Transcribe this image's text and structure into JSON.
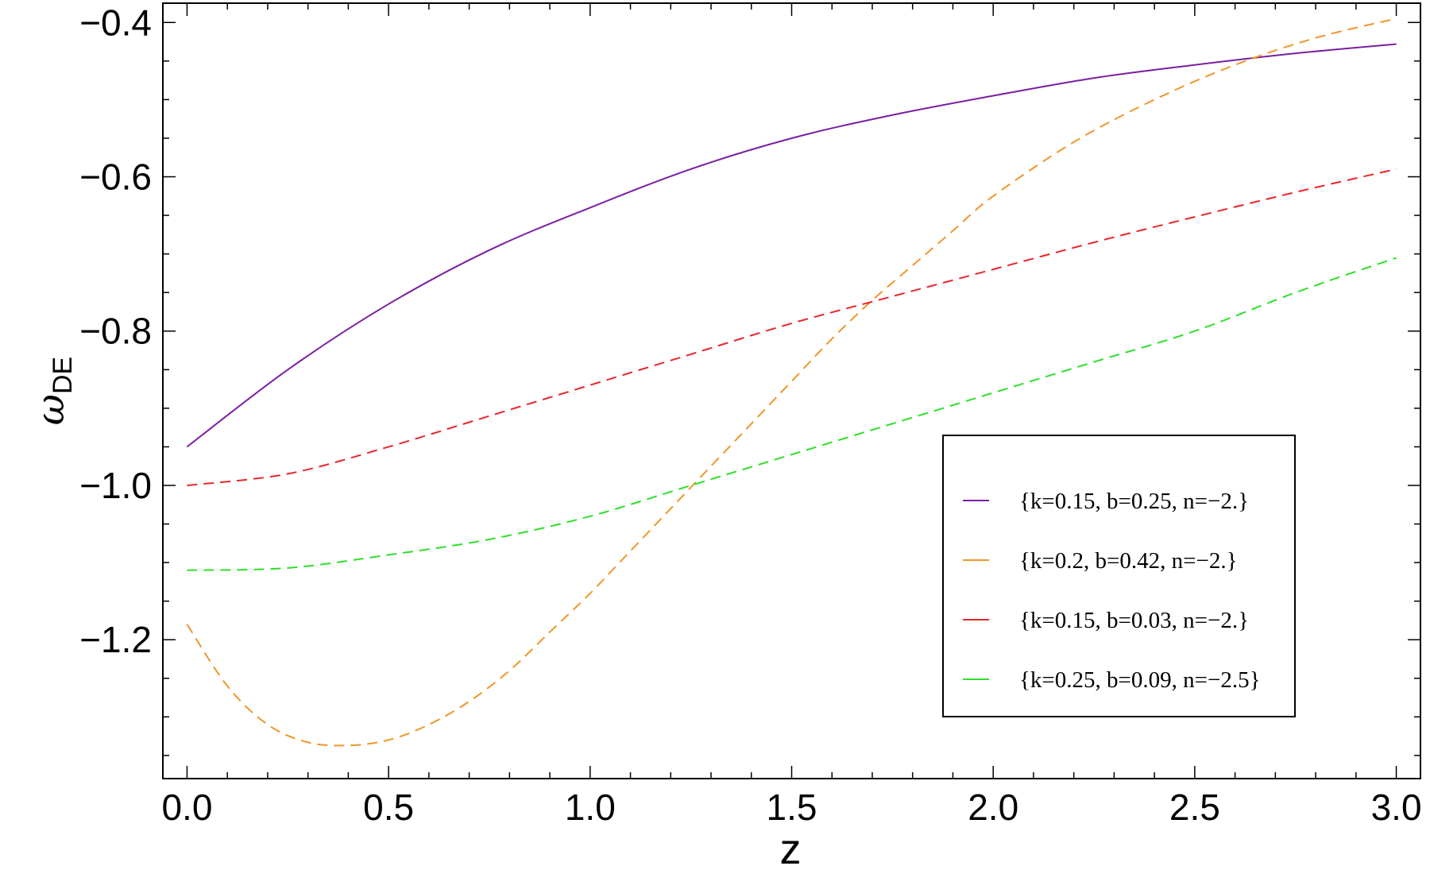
{
  "chart_data": {
    "type": "line",
    "xlabel": "z",
    "ylabel": "ω",
    "ylabel_sub": "DE",
    "xlim": [
      -0.06,
      3.06
    ],
    "ylim": [
      -1.38,
      -0.375
    ],
    "xticks": [
      {
        "value": 0.0,
        "label": "0.0"
      },
      {
        "value": 0.5,
        "label": "0.5"
      },
      {
        "value": 1.0,
        "label": "1.0"
      },
      {
        "value": 1.5,
        "label": "1.5"
      },
      {
        "value": 2.0,
        "label": "2.0"
      },
      {
        "value": 2.5,
        "label": "2.5"
      },
      {
        "value": 3.0,
        "label": "3.0"
      }
    ],
    "yticks": [
      {
        "value": -0.4,
        "label": "−0.4"
      },
      {
        "value": -0.6,
        "label": "−0.6"
      },
      {
        "value": -0.8,
        "label": "−0.8"
      },
      {
        "value": -1.0,
        "label": "−1.0"
      },
      {
        "value": -1.2,
        "label": "−1.2"
      }
    ],
    "grid": false,
    "legend_position": "lower-right",
    "series": [
      {
        "name": "{k=0.15, b=0.25, n=−2.}",
        "color": "#7a1fa2",
        "dashed": false,
        "x": [
          0.0,
          0.25,
          0.5,
          0.75,
          1.0,
          1.25,
          1.5,
          1.75,
          2.0,
          2.25,
          2.5,
          2.75,
          3.0
        ],
        "y": [
          -0.95,
          -0.85,
          -0.765,
          -0.695,
          -0.64,
          -0.59,
          -0.55,
          -0.52,
          -0.495,
          -0.472,
          -0.455,
          -0.44,
          -0.428
        ]
      },
      {
        "name": "{k=0.2, b=0.42, n=−2.}",
        "color": "#f0962a",
        "dashed": true,
        "x": [
          0.0,
          0.1,
          0.2,
          0.3,
          0.4,
          0.5,
          0.6,
          0.7,
          0.8,
          0.9,
          1.0,
          1.1,
          1.2,
          1.3,
          1.4,
          1.5,
          1.6,
          1.7,
          1.8,
          1.9,
          2.0,
          2.2,
          2.4,
          2.6,
          2.8,
          3.0
        ],
        "y": [
          -1.18,
          -1.26,
          -1.31,
          -1.333,
          -1.337,
          -1.33,
          -1.31,
          -1.28,
          -1.24,
          -1.19,
          -1.14,
          -1.085,
          -1.03,
          -0.975,
          -0.92,
          -0.865,
          -0.81,
          -0.76,
          -0.715,
          -0.67,
          -0.625,
          -0.555,
          -0.5,
          -0.455,
          -0.42,
          -0.395
        ]
      },
      {
        "name": "{k=0.15, b=0.03, n=−2.}",
        "color": "#e8262a",
        "dashed": true,
        "x": [
          0.0,
          0.25,
          0.5,
          0.75,
          1.0,
          1.25,
          1.5,
          1.75,
          2.0,
          2.25,
          2.5,
          2.75,
          3.0
        ],
        "y": [
          -1.0,
          -0.985,
          -0.95,
          -0.91,
          -0.87,
          -0.83,
          -0.79,
          -0.755,
          -0.72,
          -0.685,
          -0.652,
          -0.62,
          -0.59
        ]
      },
      {
        "name": "{k=0.25, b=0.09, n=−2.5}",
        "color": "#2ee02a",
        "dashed": true,
        "x": [
          0.0,
          0.25,
          0.5,
          0.75,
          1.0,
          1.25,
          1.5,
          1.75,
          2.0,
          2.25,
          2.5,
          2.75,
          3.0
        ],
        "y": [
          -1.11,
          -1.107,
          -1.09,
          -1.07,
          -1.04,
          -1.0,
          -0.96,
          -0.92,
          -0.88,
          -0.84,
          -0.8,
          -0.75,
          -0.705
        ]
      }
    ]
  }
}
